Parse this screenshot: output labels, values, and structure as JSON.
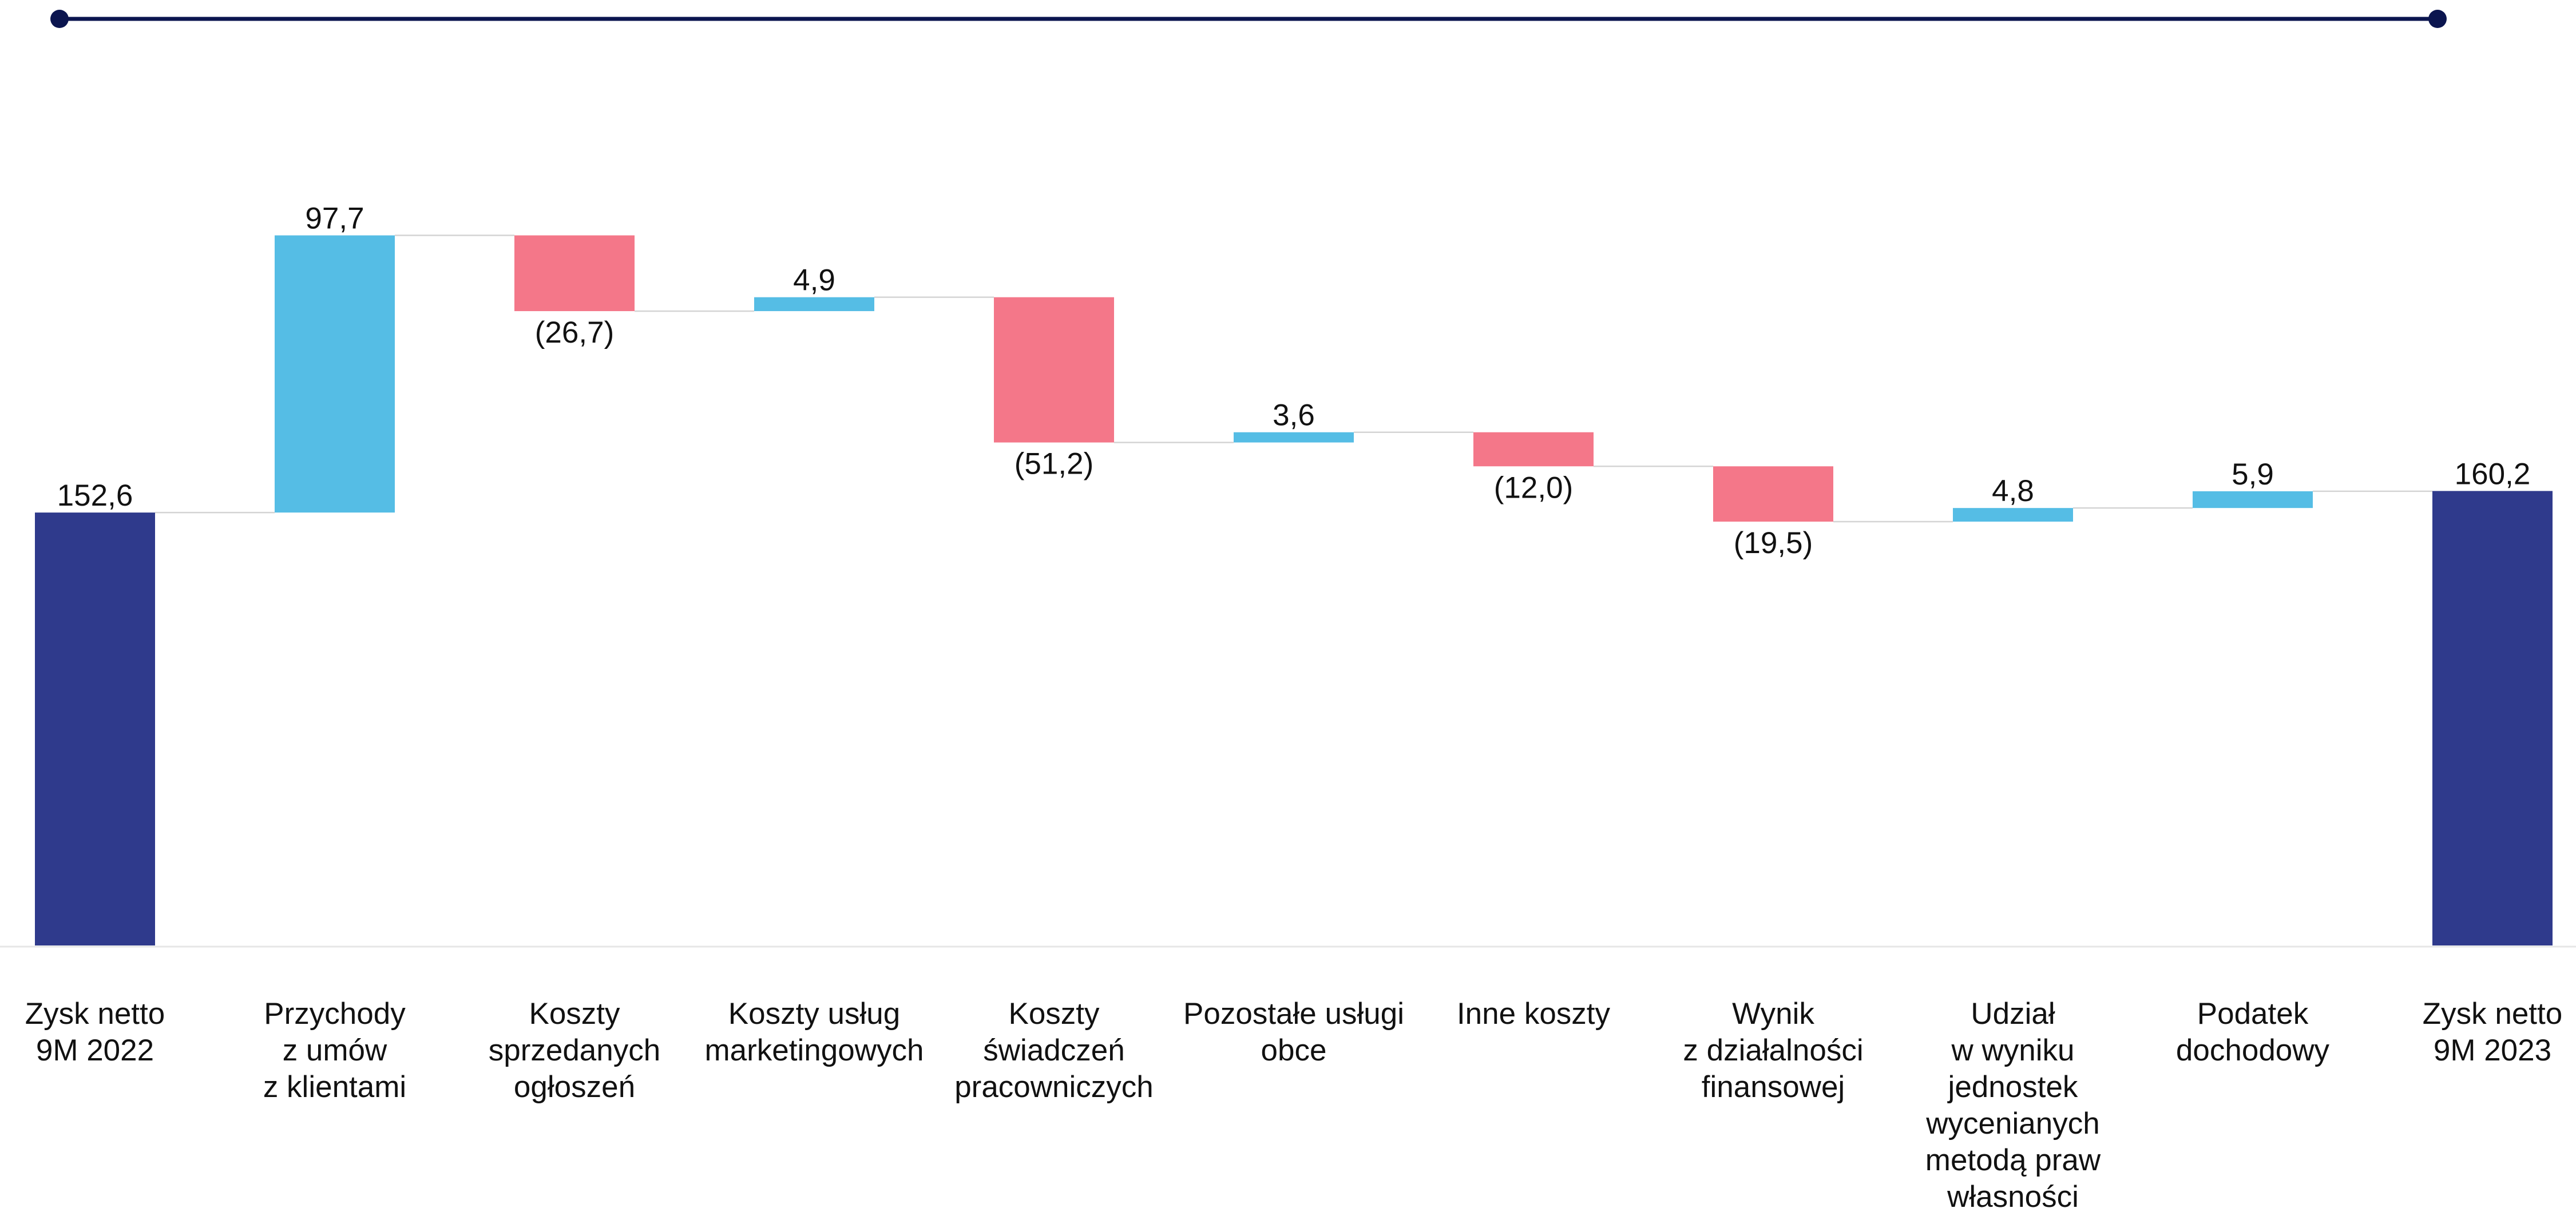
{
  "chart_data": {
    "type": "waterfall",
    "title": "",
    "xlabel": "",
    "ylabel": "",
    "ylim": [
      0,
      260
    ],
    "grid": false,
    "legend": "none",
    "colors": {
      "total": "#2f3a8c",
      "increase": "#55bde5",
      "decrease": "#f47789",
      "frame": "#0b154f",
      "connector": "#d4d4d4",
      "axis": "#e6e6e6"
    },
    "steps": [
      {
        "label": "Zysk netto\n9M 2022",
        "value": 152.6,
        "kind": "total",
        "display": "152,6"
      },
      {
        "label": "Przychody\nz umów\nz klientami",
        "value": 97.7,
        "kind": "increase",
        "display": "97,7"
      },
      {
        "label": "Koszty\nsprzedanych\nogłoszeń",
        "value": -26.7,
        "kind": "decrease",
        "display": "(26,7)"
      },
      {
        "label": "Koszty usług\nmarketingowych",
        "value": 4.9,
        "kind": "increase",
        "display": "4,9"
      },
      {
        "label": "Koszty\nświadczeń\npracowniczych",
        "value": -51.2,
        "kind": "decrease",
        "display": "(51,2)"
      },
      {
        "label": "Pozostałe usługi\nobce",
        "value": 3.6,
        "kind": "increase",
        "display": "3,6"
      },
      {
        "label": "Inne koszty",
        "value": -12.0,
        "kind": "decrease",
        "display": "(12,0)"
      },
      {
        "label": "Wynik\nz działalności\nfinansowej",
        "value": -19.5,
        "kind": "decrease",
        "display": "(19,5)"
      },
      {
        "label": "Udział\nw wyniku\njednostek\nwycenianych\nmetodą praw\nwłasności",
        "value": 4.8,
        "kind": "increase",
        "display": "4,8"
      },
      {
        "label": "Podatek\ndochodowy",
        "value": 5.9,
        "kind": "increase",
        "display": "5,9"
      },
      {
        "label": "Zysk netto\n9M 2023",
        "value": 160.2,
        "kind": "total",
        "display": "160,2"
      }
    ]
  }
}
